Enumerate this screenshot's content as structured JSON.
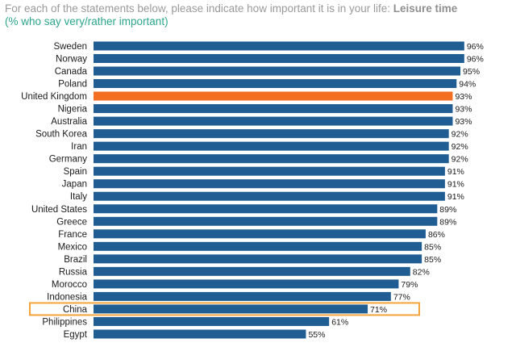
{
  "title_prefix": "For each of the statements below, please indicate how important it is in your life: ",
  "title_emphasis": "Leisure time",
  "subtitle": "(% who say very/rather important)",
  "colors": {
    "bar": "#1f5d93",
    "highlight_bar": "#f36f21",
    "highlight_box": "#f4a43a",
    "title_text": "#9a9a9a",
    "subtitle_text": "#2ba58c"
  },
  "chart_data": {
    "type": "bar",
    "orientation": "horizontal",
    "categories": [
      "Sweden",
      "Norway",
      "Canada",
      "Poland",
      "United Kingdom",
      "Nigeria",
      "Australia",
      "South Korea",
      "Iran",
      "Germany",
      "Spain",
      "Japan",
      "Italy",
      "United States",
      "Greece",
      "France",
      "Mexico",
      "Brazil",
      "Russia",
      "Morocco",
      "Indonesia",
      "China",
      "Philippines",
      "Egypt"
    ],
    "values": [
      96,
      96,
      95,
      94,
      93,
      93,
      93,
      92,
      92,
      92,
      91,
      91,
      91,
      89,
      89,
      86,
      85,
      85,
      82,
      79,
      77,
      71,
      61,
      55
    ],
    "data_labels": [
      "96%",
      "96%",
      "95%",
      "94%",
      "93%",
      "93%",
      "93%",
      "92%",
      "92%",
      "92%",
      "91%",
      "91%",
      "91%",
      "89%",
      "89%",
      "86%",
      "85%",
      "85%",
      "82%",
      "79%",
      "77%",
      "71%",
      "61%",
      "55%"
    ],
    "highlighted_bar": "United Kingdom",
    "outlined_row": "China",
    "xlim": [
      0,
      100
    ],
    "grid": false,
    "legend": "none"
  }
}
